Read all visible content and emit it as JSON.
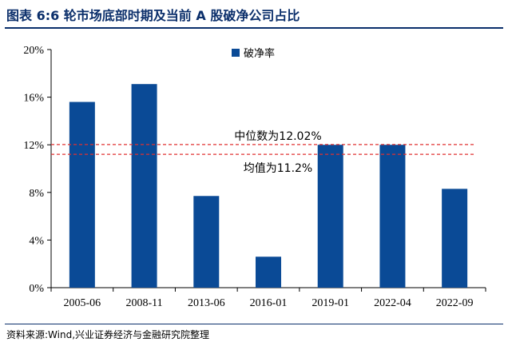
{
  "header": {
    "title": "图表 6:6 轮市场底部时期及当前 A 股破净公司占比"
  },
  "footer": {
    "source": "资料来源:Wind,兴业证券经济与金融研究院整理"
  },
  "chart_data": {
    "type": "bar",
    "categories": [
      "2005-06",
      "2008-11",
      "2013-06",
      "2016-01",
      "2019-01",
      "2022-04",
      "2022-09"
    ],
    "series": [
      {
        "name": "破净率",
        "values": [
          15.6,
          17.1,
          7.7,
          2.6,
          12.0,
          12.0,
          8.3
        ],
        "color": "#0a4a96"
      }
    ],
    "ylim": [
      0,
      20
    ],
    "y_ticks": [
      "0%",
      "4%",
      "8%",
      "12%",
      "16%",
      "20%"
    ],
    "y_tick_values": [
      0,
      4,
      8,
      12,
      16,
      20
    ],
    "reference_lines": [
      {
        "label": "中位数为12.02%",
        "value": 12.02,
        "color": "#e03030"
      },
      {
        "label": "均值为11.2%",
        "value": 11.2,
        "color": "#e03030"
      }
    ],
    "legend_position": "top-center",
    "grid": false
  }
}
